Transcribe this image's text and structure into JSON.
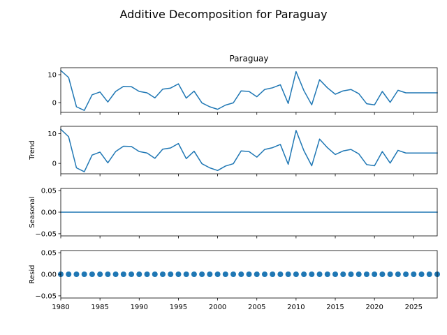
{
  "figure": {
    "title": "Additive Decomposition for Paraguay"
  },
  "chart_data": {
    "type": "line",
    "title": "Additive Decomposition for Paraguay",
    "x_range": [
      1980,
      2028
    ],
    "x_ticks": [
      1980,
      1985,
      1990,
      1995,
      2000,
      2005,
      2010,
      2015,
      2020,
      2025
    ],
    "x": [
      1980,
      1981,
      1982,
      1983,
      1984,
      1985,
      1986,
      1987,
      1988,
      1989,
      1990,
      1991,
      1992,
      1993,
      1994,
      1995,
      1996,
      1997,
      1998,
      1999,
      2000,
      2001,
      2002,
      2003,
      2004,
      2005,
      2006,
      2007,
      2008,
      2009,
      2010,
      2011,
      2012,
      2013,
      2014,
      2015,
      2016,
      2017,
      2018,
      2019,
      2020,
      2021,
      2022,
      2023,
      2024,
      2025,
      2026,
      2027,
      2028
    ],
    "series_color": "#1f77b4",
    "panels": [
      {
        "id": "observed",
        "title": "Paraguay",
        "ylabel": "",
        "ylim": [
          -3.5,
          12.5
        ],
        "yticks": [
          0,
          10
        ],
        "ytick_labels": [
          "0",
          "10"
        ],
        "style": "line",
        "values": [
          11.5,
          9.0,
          -1.5,
          -2.8,
          2.8,
          3.8,
          0.2,
          4.0,
          5.8,
          5.7,
          4.0,
          3.5,
          1.7,
          4.8,
          5.2,
          6.7,
          1.6,
          4.1,
          -0.1,
          -1.5,
          -2.4,
          -0.9,
          -0.1,
          4.2,
          4.0,
          2.1,
          4.7,
          5.3,
          6.4,
          -0.3,
          11.1,
          4.3,
          -0.8,
          8.2,
          5.3,
          3.0,
          4.2,
          4.7,
          3.2,
          -0.4,
          -0.8,
          4.0,
          0.1,
          4.4,
          3.5,
          3.5,
          3.5,
          3.5,
          3.5
        ]
      },
      {
        "id": "trend",
        "title": "",
        "ylabel": "Trend",
        "ylim": [
          -3.5,
          12.5
        ],
        "yticks": [
          0,
          10
        ],
        "ytick_labels": [
          "0",
          "10"
        ],
        "style": "line",
        "values": [
          11.5,
          9.0,
          -1.5,
          -2.8,
          2.8,
          3.8,
          0.2,
          4.0,
          5.8,
          5.7,
          4.0,
          3.5,
          1.7,
          4.8,
          5.2,
          6.7,
          1.6,
          4.1,
          -0.1,
          -1.5,
          -2.4,
          -0.9,
          -0.1,
          4.2,
          4.0,
          2.1,
          4.7,
          5.3,
          6.4,
          -0.3,
          11.1,
          4.3,
          -0.8,
          8.2,
          5.3,
          3.0,
          4.2,
          4.7,
          3.2,
          -0.4,
          -0.8,
          4.0,
          0.1,
          4.4,
          3.5,
          3.5,
          3.5,
          3.5,
          3.5
        ]
      },
      {
        "id": "seasonal",
        "title": "",
        "ylabel": "Seasonal",
        "ylim": [
          -0.055,
          0.055
        ],
        "yticks": [
          -0.05,
          0.0,
          0.05
        ],
        "ytick_labels": [
          "−0.05",
          "0.00",
          "0.05"
        ],
        "style": "line",
        "values": [
          0,
          0,
          0,
          0,
          0,
          0,
          0,
          0,
          0,
          0,
          0,
          0,
          0,
          0,
          0,
          0,
          0,
          0,
          0,
          0,
          0,
          0,
          0,
          0,
          0,
          0,
          0,
          0,
          0,
          0,
          0,
          0,
          0,
          0,
          0,
          0,
          0,
          0,
          0,
          0,
          0,
          0,
          0,
          0,
          0,
          0,
          0,
          0,
          0
        ]
      },
      {
        "id": "resid",
        "title": "",
        "ylabel": "Resid",
        "ylim": [
          -0.055,
          0.055
        ],
        "yticks": [
          -0.05,
          0.0,
          0.05
        ],
        "ytick_labels": [
          "−0.05",
          "0.00",
          "0.05"
        ],
        "style": "scatter",
        "values": [
          0,
          0,
          0,
          0,
          0,
          0,
          0,
          0,
          0,
          0,
          0,
          0,
          0,
          0,
          0,
          0,
          0,
          0,
          0,
          0,
          0,
          0,
          0,
          0,
          0,
          0,
          0,
          0,
          0,
          0,
          0,
          0,
          0,
          0,
          0,
          0,
          0,
          0,
          0,
          0,
          0,
          0,
          0,
          0,
          0,
          0,
          0,
          0,
          0
        ]
      }
    ]
  }
}
